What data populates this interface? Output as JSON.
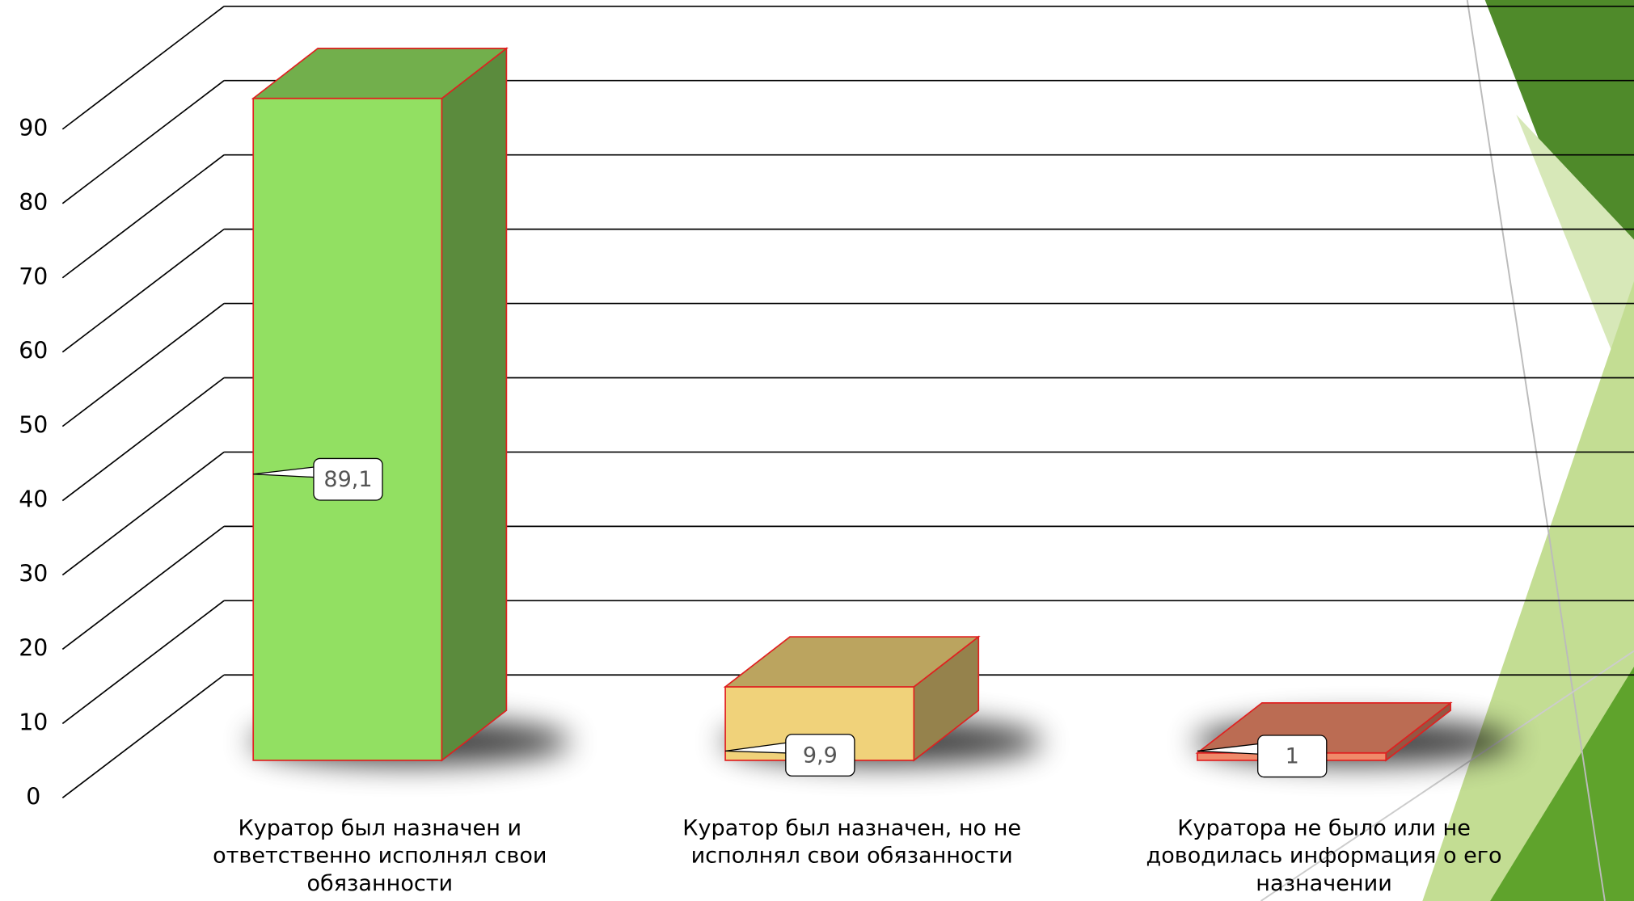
{
  "chart_data": {
    "type": "bar3d",
    "categories": [
      "Куратор был назначен и ответственно исполнял свои обязанности",
      "Куратор был назначен, но не исполнял свои обязанности",
      "Куратора не было или не доводилась информация о его назначении"
    ],
    "values": [
      89.1,
      9.9,
      1
    ],
    "value_labels": [
      "89,1",
      "9,9",
      "1"
    ],
    "colors": [
      "#92e062",
      "#f0d27a",
      "#f08a6a"
    ],
    "ylim": [
      0,
      90
    ],
    "yticks": [
      0,
      10,
      20,
      30,
      40,
      50,
      60,
      70,
      80,
      90
    ],
    "grid": true
  }
}
